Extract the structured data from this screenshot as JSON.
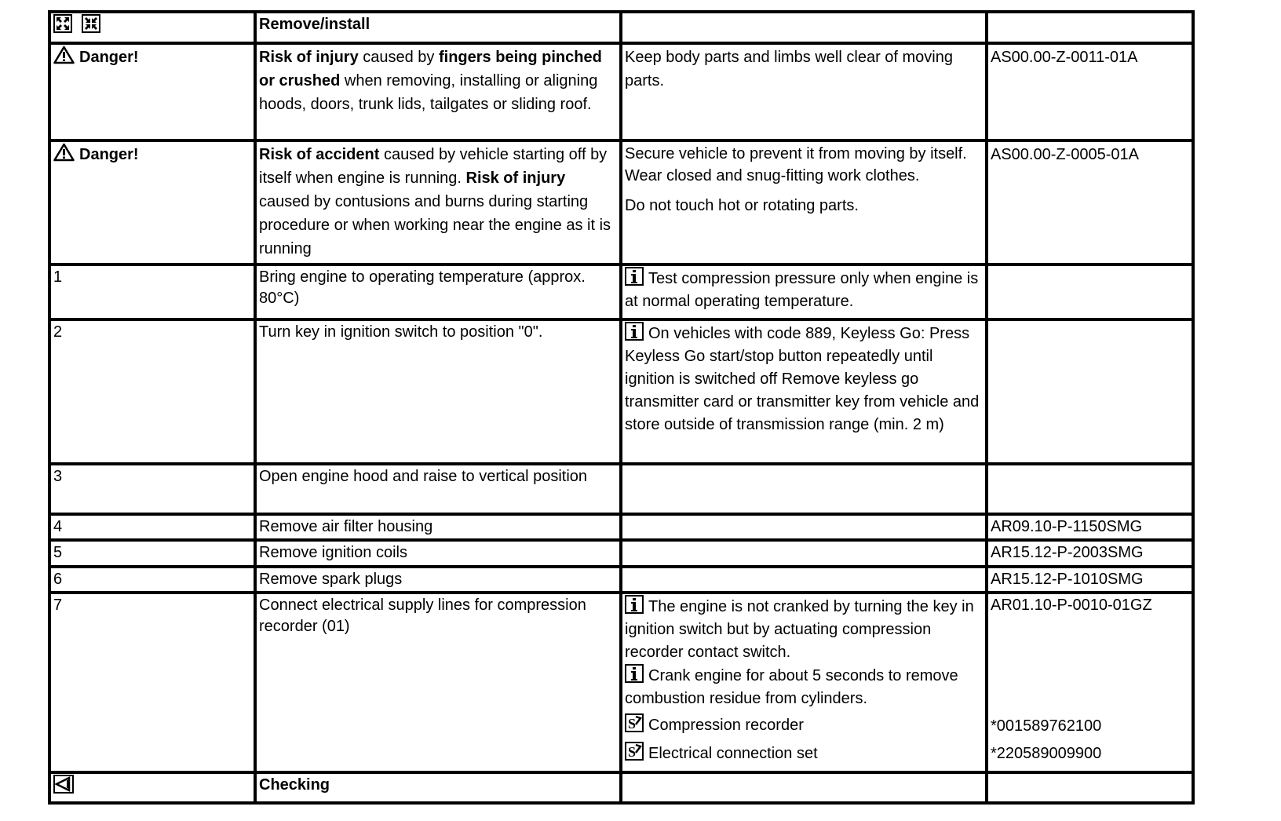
{
  "header": {
    "title": "Remove/install",
    "icons": [
      "expand-all-icon",
      "collapse-all-icon"
    ]
  },
  "danger_rows": [
    {
      "label": "Danger!",
      "icon": "warning-triangle-icon",
      "description": [
        {
          "text": "Risk of injury",
          "bold": true
        },
        {
          "text": " caused by ",
          "bold": false
        },
        {
          "text": "fingers being pinched or crushed",
          "bold": true
        },
        {
          "text": " when removing, installing or aligning hoods, doors, trunk lids, tailgates or sliding roof.",
          "bold": false
        }
      ],
      "measures": [
        "Keep body parts and limbs well clear of moving parts."
      ],
      "reference": "AS00.00-Z-0011-01A"
    },
    {
      "label": "Danger!",
      "icon": "warning-triangle-icon",
      "description": [
        {
          "text": "Risk of accident",
          "bold": true
        },
        {
          "text": " caused by vehicle starting off by itself when engine is running. ",
          "bold": false
        },
        {
          "text": "Risk of injury",
          "bold": true
        },
        {
          "text": " caused by contusions and burns during starting procedure or when working near the engine as it is running",
          "bold": false
        }
      ],
      "measures": [
        "Secure vehicle to prevent it from moving by itself.",
        "Wear closed and snug-fitting work clothes.",
        "Do not touch hot or rotating parts."
      ],
      "reference": "AS00.00-Z-0005-01A"
    }
  ],
  "steps": [
    {
      "number": "1",
      "action": "Bring engine to operating temperature (approx. 80°C)",
      "notes": [
        {
          "type": "info",
          "text": "Test compression pressure only when engine is at normal operating temperature."
        }
      ],
      "reference": ""
    },
    {
      "number": "2",
      "action": "Turn key in ignition switch to position \"0\".",
      "notes": [
        {
          "type": "info",
          "text": "On vehicles with code 889, Keyless Go: Press Keyless Go start/stop button repeatedly until ignition is switched off Remove keyless go transmitter card or transmitter key from vehicle and store outside of transmission range (min. 2 m)"
        }
      ],
      "reference": ""
    },
    {
      "number": "3",
      "action": "Open engine hood and raise to vertical position",
      "notes": [],
      "reference": ""
    },
    {
      "number": "4",
      "action": "Remove air filter housing",
      "notes": [],
      "reference": "AR09.10-P-1150SMG"
    },
    {
      "number": "5",
      "action": "Remove ignition coils",
      "notes": [],
      "reference": "AR15.12-P-2003SMG"
    },
    {
      "number": "6",
      "action": "Remove spark plugs",
      "notes": [],
      "reference": "AR15.12-P-1010SMG"
    },
    {
      "number": "7",
      "action": "Connect electrical supply lines for compression recorder (01)",
      "notes": [
        {
          "type": "info",
          "text": "The engine is not cranked by turning the key in ignition switch but by actuating compression recorder contact switch."
        },
        {
          "type": "info",
          "text": "Crank engine for about 5 seconds to remove combustion residue from cylinders."
        },
        {
          "type": "tool",
          "text": "Compression recorder"
        },
        {
          "type": "tool",
          "text": "Electrical connection set"
        }
      ],
      "reference": "AR01.10-P-0010-01GZ",
      "tool_numbers": [
        "*001589762100",
        "*220589009900"
      ]
    }
  ],
  "footer": {
    "title": "Checking",
    "icon": "back-triangle-icon"
  }
}
